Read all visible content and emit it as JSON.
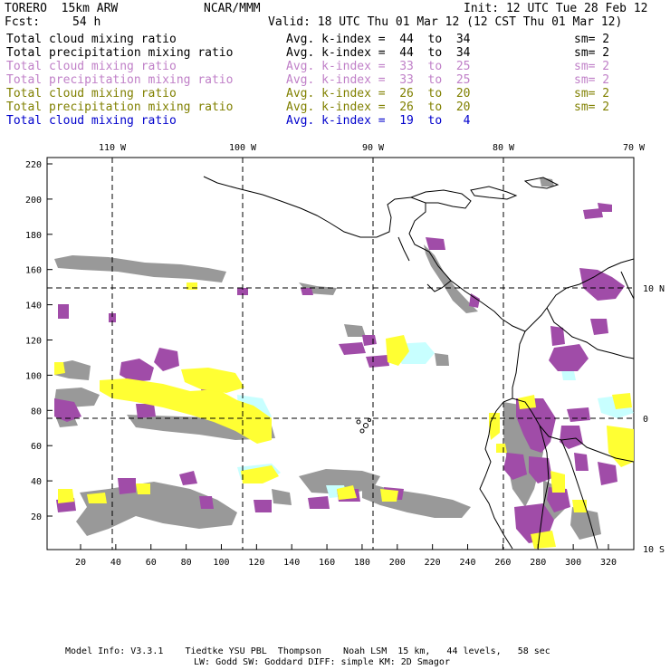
{
  "header": {
    "model": "TORERO  15km ARW",
    "org": "NCAR/MMM",
    "init": "Init: 12 UTC Tue 28 Feb 12",
    "fcst_label": "Fcst:",
    "fcst_value": "54 h",
    "valid": "Valid: 18 UTC Thu 01 Mar 12 (12 CST Thu 01 Mar 12)"
  },
  "legend": [
    {
      "field": "Total cloud mixing ratio",
      "range": "Avg. k-index =  44  to  34",
      "sm": "sm= 2",
      "color": "#000000"
    },
    {
      "field": "Total precipitation mixing ratio",
      "range": "Avg. k-index =  44  to  34",
      "sm": "sm= 2",
      "color": "#000000"
    },
    {
      "field": "Total cloud mixing ratio",
      "range": "Avg. k-index =  33  to  25",
      "sm": "sm= 2",
      "color": "#c080c8"
    },
    {
      "field": "Total precipitation mixing ratio",
      "range": "Avg. k-index =  33  to  25",
      "sm": "sm= 2",
      "color": "#c080c8"
    },
    {
      "field": "Total cloud mixing ratio",
      "range": "Avg. k-index =  26  to  20",
      "sm": "sm= 2",
      "color": "#808000"
    },
    {
      "field": "Total precipitation mixing ratio",
      "range": "Avg. k-index =  26  to  20",
      "sm": "sm= 2",
      "color": "#808000"
    },
    {
      "field": "Total cloud mixing ratio",
      "range": "Avg. k-index =  19  to   4",
      "sm": "",
      "color": "#0000cc"
    }
  ],
  "map": {
    "lon_labels": [
      "110 W",
      "100 W",
      "90 W",
      "80 W",
      "70 W"
    ],
    "lat_labels": [
      "10 N",
      "0",
      "10 S"
    ],
    "y_ticks": [
      "220",
      "200",
      "180",
      "160",
      "140",
      "120",
      "100",
      "80",
      "60",
      "40",
      "20"
    ],
    "x_ticks": [
      "20",
      "40",
      "60",
      "80",
      "100",
      "120",
      "140",
      "160",
      "180",
      "200",
      "220",
      "240",
      "260",
      "280",
      "300",
      "320"
    ],
    "colors": {
      "gray": "#999999",
      "purple": "#a04ca8",
      "yellow": "#ffff33",
      "cyan": "#c8ffff"
    }
  },
  "footer": {
    "line1": "Model Info: V3.3.1    Tiedtke YSU PBL  Thompson    Noah LSM  15 km,   44 levels,   58 sec",
    "line2": "LW: Godd SW: Goddard DIFF: simple KM: 2D Smagor"
  }
}
